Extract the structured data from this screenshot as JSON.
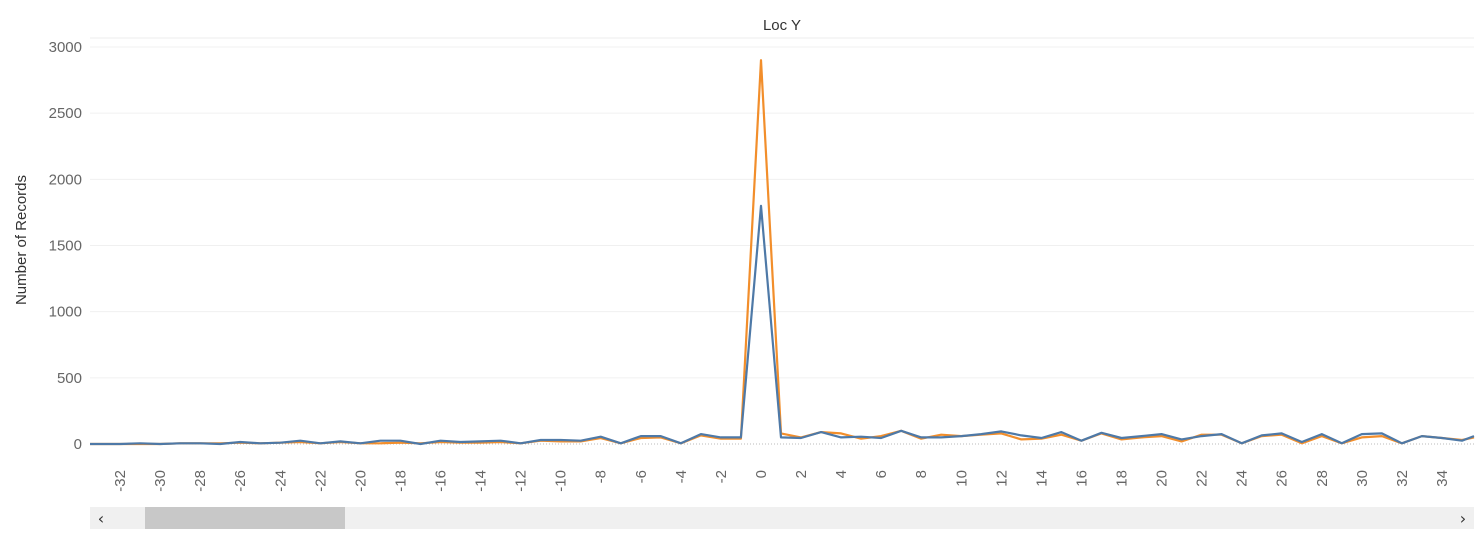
{
  "chart_data": {
    "type": "line",
    "title": "Loc Y",
    "xlabel": "",
    "ylabel": "Number of Records",
    "ylim": [
      0,
      3000
    ],
    "xlim": [
      -33.5,
      35.6
    ],
    "yticks": [
      0,
      500,
      1000,
      1500,
      2000,
      2500,
      3000
    ],
    "xticks": [
      -32,
      -30,
      -28,
      -26,
      -24,
      -22,
      -20,
      -18,
      -16,
      -14,
      -12,
      -10,
      -8,
      -6,
      -4,
      -2,
      0,
      2,
      4,
      6,
      8,
      10,
      12,
      14,
      16,
      18,
      20,
      22,
      24,
      26,
      28,
      30,
      32,
      34
    ],
    "grid": "horizontal",
    "colors": {
      "series_orange": "#f28e2b",
      "series_blue": "#4e79a7"
    },
    "series": [
      {
        "color": "#f28e2b",
        "points": [
          [
            -33.5,
            0
          ],
          [
            -31,
            0
          ],
          [
            -30,
            0
          ],
          [
            -29,
            5
          ],
          [
            -28,
            5
          ],
          [
            -27,
            5
          ],
          [
            -26,
            10
          ],
          [
            -25,
            5
          ],
          [
            -24,
            10
          ],
          [
            -23,
            15
          ],
          [
            -22,
            5
          ],
          [
            -21,
            15
          ],
          [
            -20,
            5
          ],
          [
            -19,
            5
          ],
          [
            -18,
            10
          ],
          [
            -17,
            5
          ],
          [
            -16,
            15
          ],
          [
            -15,
            10
          ],
          [
            -14,
            10
          ],
          [
            -13,
            15
          ],
          [
            -12,
            5
          ],
          [
            -11,
            25
          ],
          [
            -10,
            20
          ],
          [
            -9,
            20
          ],
          [
            -8,
            45
          ],
          [
            -7,
            5
          ],
          [
            -6,
            45
          ],
          [
            -5,
            50
          ],
          [
            -4,
            5
          ],
          [
            -3,
            65
          ],
          [
            -2,
            40
          ],
          [
            -1,
            40
          ],
          [
            0,
            2900
          ],
          [
            1,
            80
          ],
          [
            2,
            50
          ],
          [
            3,
            90
          ],
          [
            4,
            80
          ],
          [
            5,
            40
          ],
          [
            6,
            60
          ],
          [
            7,
            100
          ],
          [
            8,
            40
          ],
          [
            9,
            70
          ],
          [
            10,
            60
          ],
          [
            11,
            70
          ],
          [
            12,
            80
          ],
          [
            13,
            35
          ],
          [
            14,
            40
          ],
          [
            15,
            70
          ],
          [
            16,
            25
          ],
          [
            17,
            80
          ],
          [
            18,
            35
          ],
          [
            19,
            50
          ],
          [
            20,
            60
          ],
          [
            21,
            20
          ],
          [
            22,
            70
          ],
          [
            23,
            70
          ],
          [
            24,
            5
          ],
          [
            25,
            60
          ],
          [
            26,
            70
          ],
          [
            27,
            5
          ],
          [
            28,
            60
          ],
          [
            29,
            5
          ],
          [
            30,
            50
          ],
          [
            31,
            60
          ],
          [
            32,
            5
          ],
          [
            33,
            60
          ],
          [
            34,
            45
          ],
          [
            35,
            30
          ],
          [
            35.6,
            50
          ]
        ]
      },
      {
        "color": "#4e79a7",
        "points": [
          [
            -33.5,
            0
          ],
          [
            -32,
            0
          ],
          [
            -31,
            5
          ],
          [
            -30,
            0
          ],
          [
            -29,
            5
          ],
          [
            -28,
            5
          ],
          [
            -27,
            0
          ],
          [
            -26,
            15
          ],
          [
            -25,
            5
          ],
          [
            -24,
            10
          ],
          [
            -23,
            25
          ],
          [
            -22,
            5
          ],
          [
            -21,
            20
          ],
          [
            -20,
            5
          ],
          [
            -19,
            25
          ],
          [
            -18,
            25
          ],
          [
            -17,
            0
          ],
          [
            -16,
            25
          ],
          [
            -15,
            15
          ],
          [
            -14,
            20
          ],
          [
            -13,
            25
          ],
          [
            -12,
            5
          ],
          [
            -11,
            30
          ],
          [
            -10,
            30
          ],
          [
            -9,
            25
          ],
          [
            -8,
            55
          ],
          [
            -7,
            5
          ],
          [
            -6,
            60
          ],
          [
            -5,
            60
          ],
          [
            -4,
            5
          ],
          [
            -3,
            75
          ],
          [
            -2,
            50
          ],
          [
            -1,
            50
          ],
          [
            0,
            1800
          ],
          [
            1,
            50
          ],
          [
            2,
            45
          ],
          [
            3,
            90
          ],
          [
            4,
            50
          ],
          [
            5,
            55
          ],
          [
            6,
            45
          ],
          [
            7,
            100
          ],
          [
            8,
            50
          ],
          [
            9,
            50
          ],
          [
            10,
            60
          ],
          [
            11,
            75
          ],
          [
            12,
            95
          ],
          [
            13,
            65
          ],
          [
            14,
            45
          ],
          [
            15,
            90
          ],
          [
            16,
            25
          ],
          [
            17,
            85
          ],
          [
            18,
            45
          ],
          [
            19,
            60
          ],
          [
            20,
            75
          ],
          [
            21,
            35
          ],
          [
            22,
            60
          ],
          [
            23,
            75
          ],
          [
            24,
            5
          ],
          [
            25,
            65
          ],
          [
            26,
            80
          ],
          [
            27,
            15
          ],
          [
            28,
            75
          ],
          [
            29,
            5
          ],
          [
            30,
            75
          ],
          [
            31,
            80
          ],
          [
            32,
            5
          ],
          [
            33,
            60
          ],
          [
            34,
            45
          ],
          [
            35,
            25
          ],
          [
            35.6,
            60
          ]
        ]
      }
    ]
  },
  "scrollbar": {
    "left_icon": "chevron-left-icon",
    "right_icon": "chevron-right-icon",
    "left_glyph": "‹",
    "right_glyph": "›"
  }
}
